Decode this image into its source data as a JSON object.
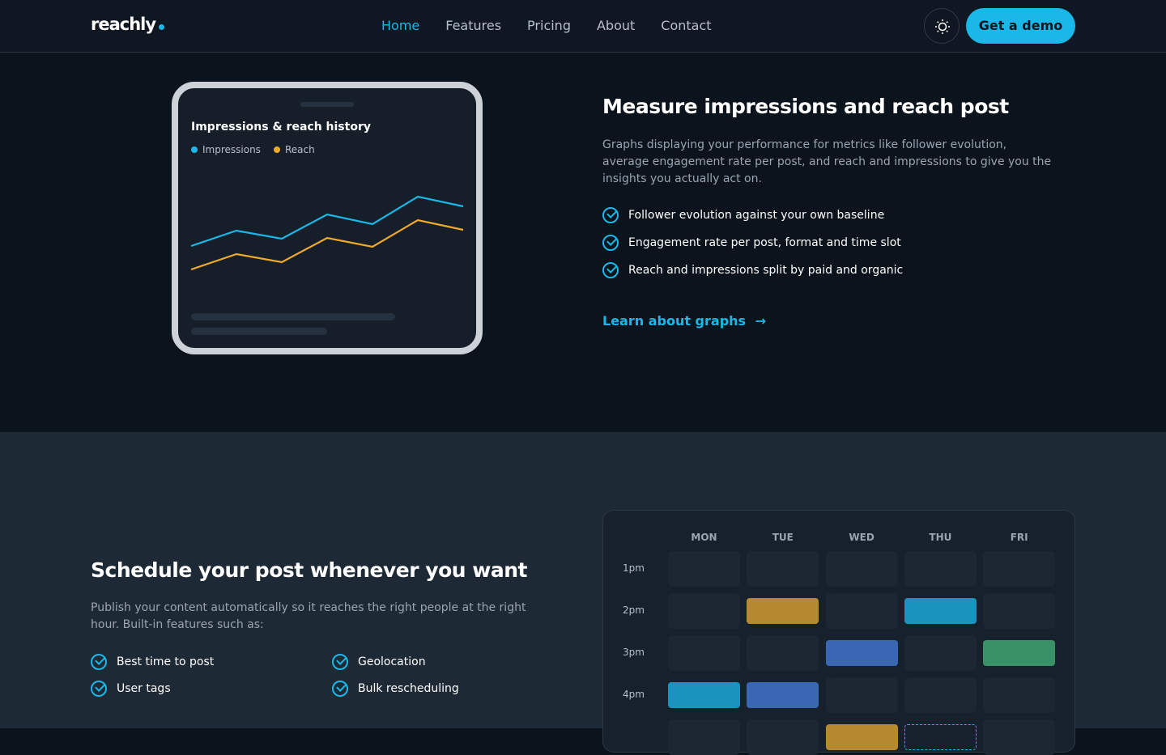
{
  "nav": {
    "logo": "reachly",
    "links": [
      "Home",
      "Features",
      "Pricing",
      "About",
      "Contact"
    ],
    "cta": "Get a demo"
  },
  "graphs": {
    "card_title": "Impressions & reach history",
    "chart_data": {
      "type": "line",
      "series": [
        {
          "name": "Impressions",
          "color": "#1ab8e8",
          "values": [
            57,
            76,
            66,
            96,
            84,
            118,
            106
          ]
        },
        {
          "name": "Reach",
          "color": "#f0aa2a",
          "values": [
            28,
            47,
            37,
            67,
            56,
            89,
            77
          ]
        }
      ]
    },
    "title": "Measure impressions and reach post",
    "description": "Graphs displaying your performance for metrics like follower evolution, average engagement rate per post, and reach and impressions to give you the insights you actually act on.",
    "bullets": [
      "Follower evolution against your own baseline",
      "Engagement rate per post, format and time slot",
      "Reach and impressions split by paid and organic"
    ],
    "link": "Learn about graphs"
  },
  "schedule": {
    "title": "Schedule your post whenever you want",
    "description": "Publish your content automatically so it reaches the right people at the right hour. Built-in features such as:",
    "features": [
      "Best time to post",
      "Geolocation",
      "User tags",
      "Bulk rescheduling"
    ],
    "days": [
      "MON",
      "TUE",
      "WED",
      "THU",
      "FRI"
    ],
    "times": [
      "1pm",
      "2pm",
      "3pm",
      "4pm",
      null
    ]
  }
}
